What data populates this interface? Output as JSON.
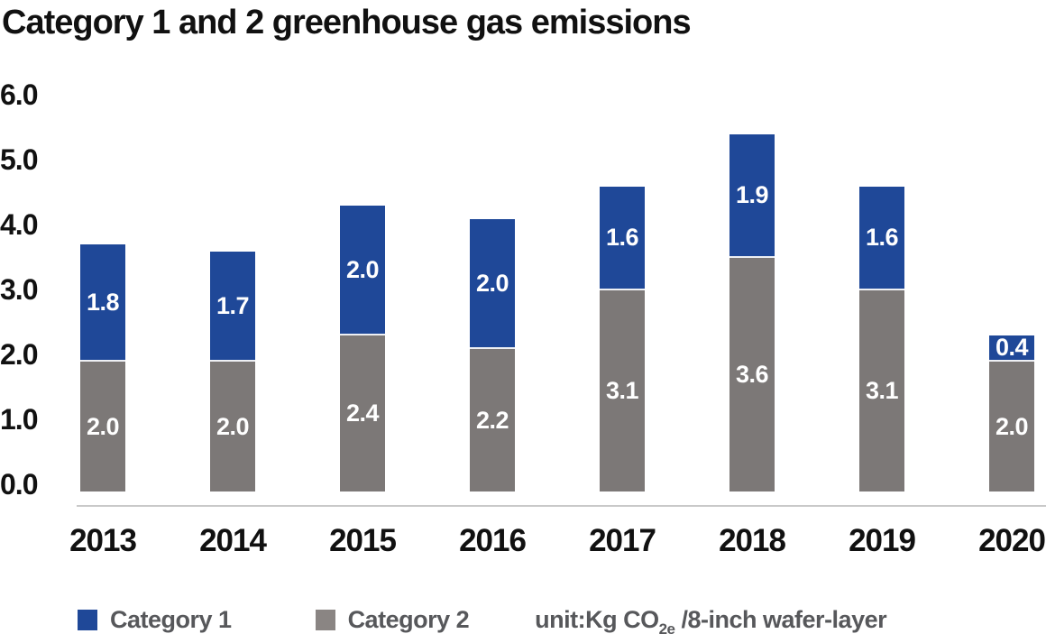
{
  "title": "Category 1 and 2 greenhouse gas emissions",
  "colors": {
    "category1": "#1f4898",
    "category2": "#7c7877",
    "legend_swatch_category2": "#8a8583",
    "axis_line": "#c9c9c9",
    "dark_text": "#111111",
    "legend_text": "#57585b",
    "value_label_text": "#ffffff"
  },
  "chart_data": {
    "type": "bar",
    "stacked": true,
    "title": "Category 1 and 2 greenhouse gas emissions",
    "categories": [
      "2013",
      "2014",
      "2015",
      "2016",
      "2017",
      "2018",
      "2019",
      "2020"
    ],
    "series": [
      {
        "name": "Category 1",
        "color": "#1f4898",
        "stack_position": "top",
        "values": [
          1.8,
          1.7,
          2.0,
          2.0,
          1.6,
          1.9,
          1.6,
          0.4
        ]
      },
      {
        "name": "Category 2",
        "color": "#7c7877",
        "stack_position": "bottom",
        "values": [
          2.0,
          2.0,
          2.4,
          2.2,
          3.1,
          3.6,
          3.1,
          2.0
        ]
      }
    ],
    "xlabel": "",
    "ylabel": "",
    "ylim": [
      0,
      6
    ],
    "yticks": [
      "6.0",
      "5.0",
      "4.0",
      "3.0",
      "2.0",
      "1.0",
      "0.0"
    ],
    "grid": false,
    "value_labels": "inside, white, one decimal",
    "legend_position": "bottom",
    "unit": "unit:Kg CO2e /8-inch wafer-layer"
  },
  "legend": {
    "category1_label": "Category 1",
    "category2_label": "Category 2",
    "unit_prefix": "unit:Kg CO",
    "unit_subscript": "2e",
    "unit_suffix": " /8-inch wafer-layer"
  }
}
